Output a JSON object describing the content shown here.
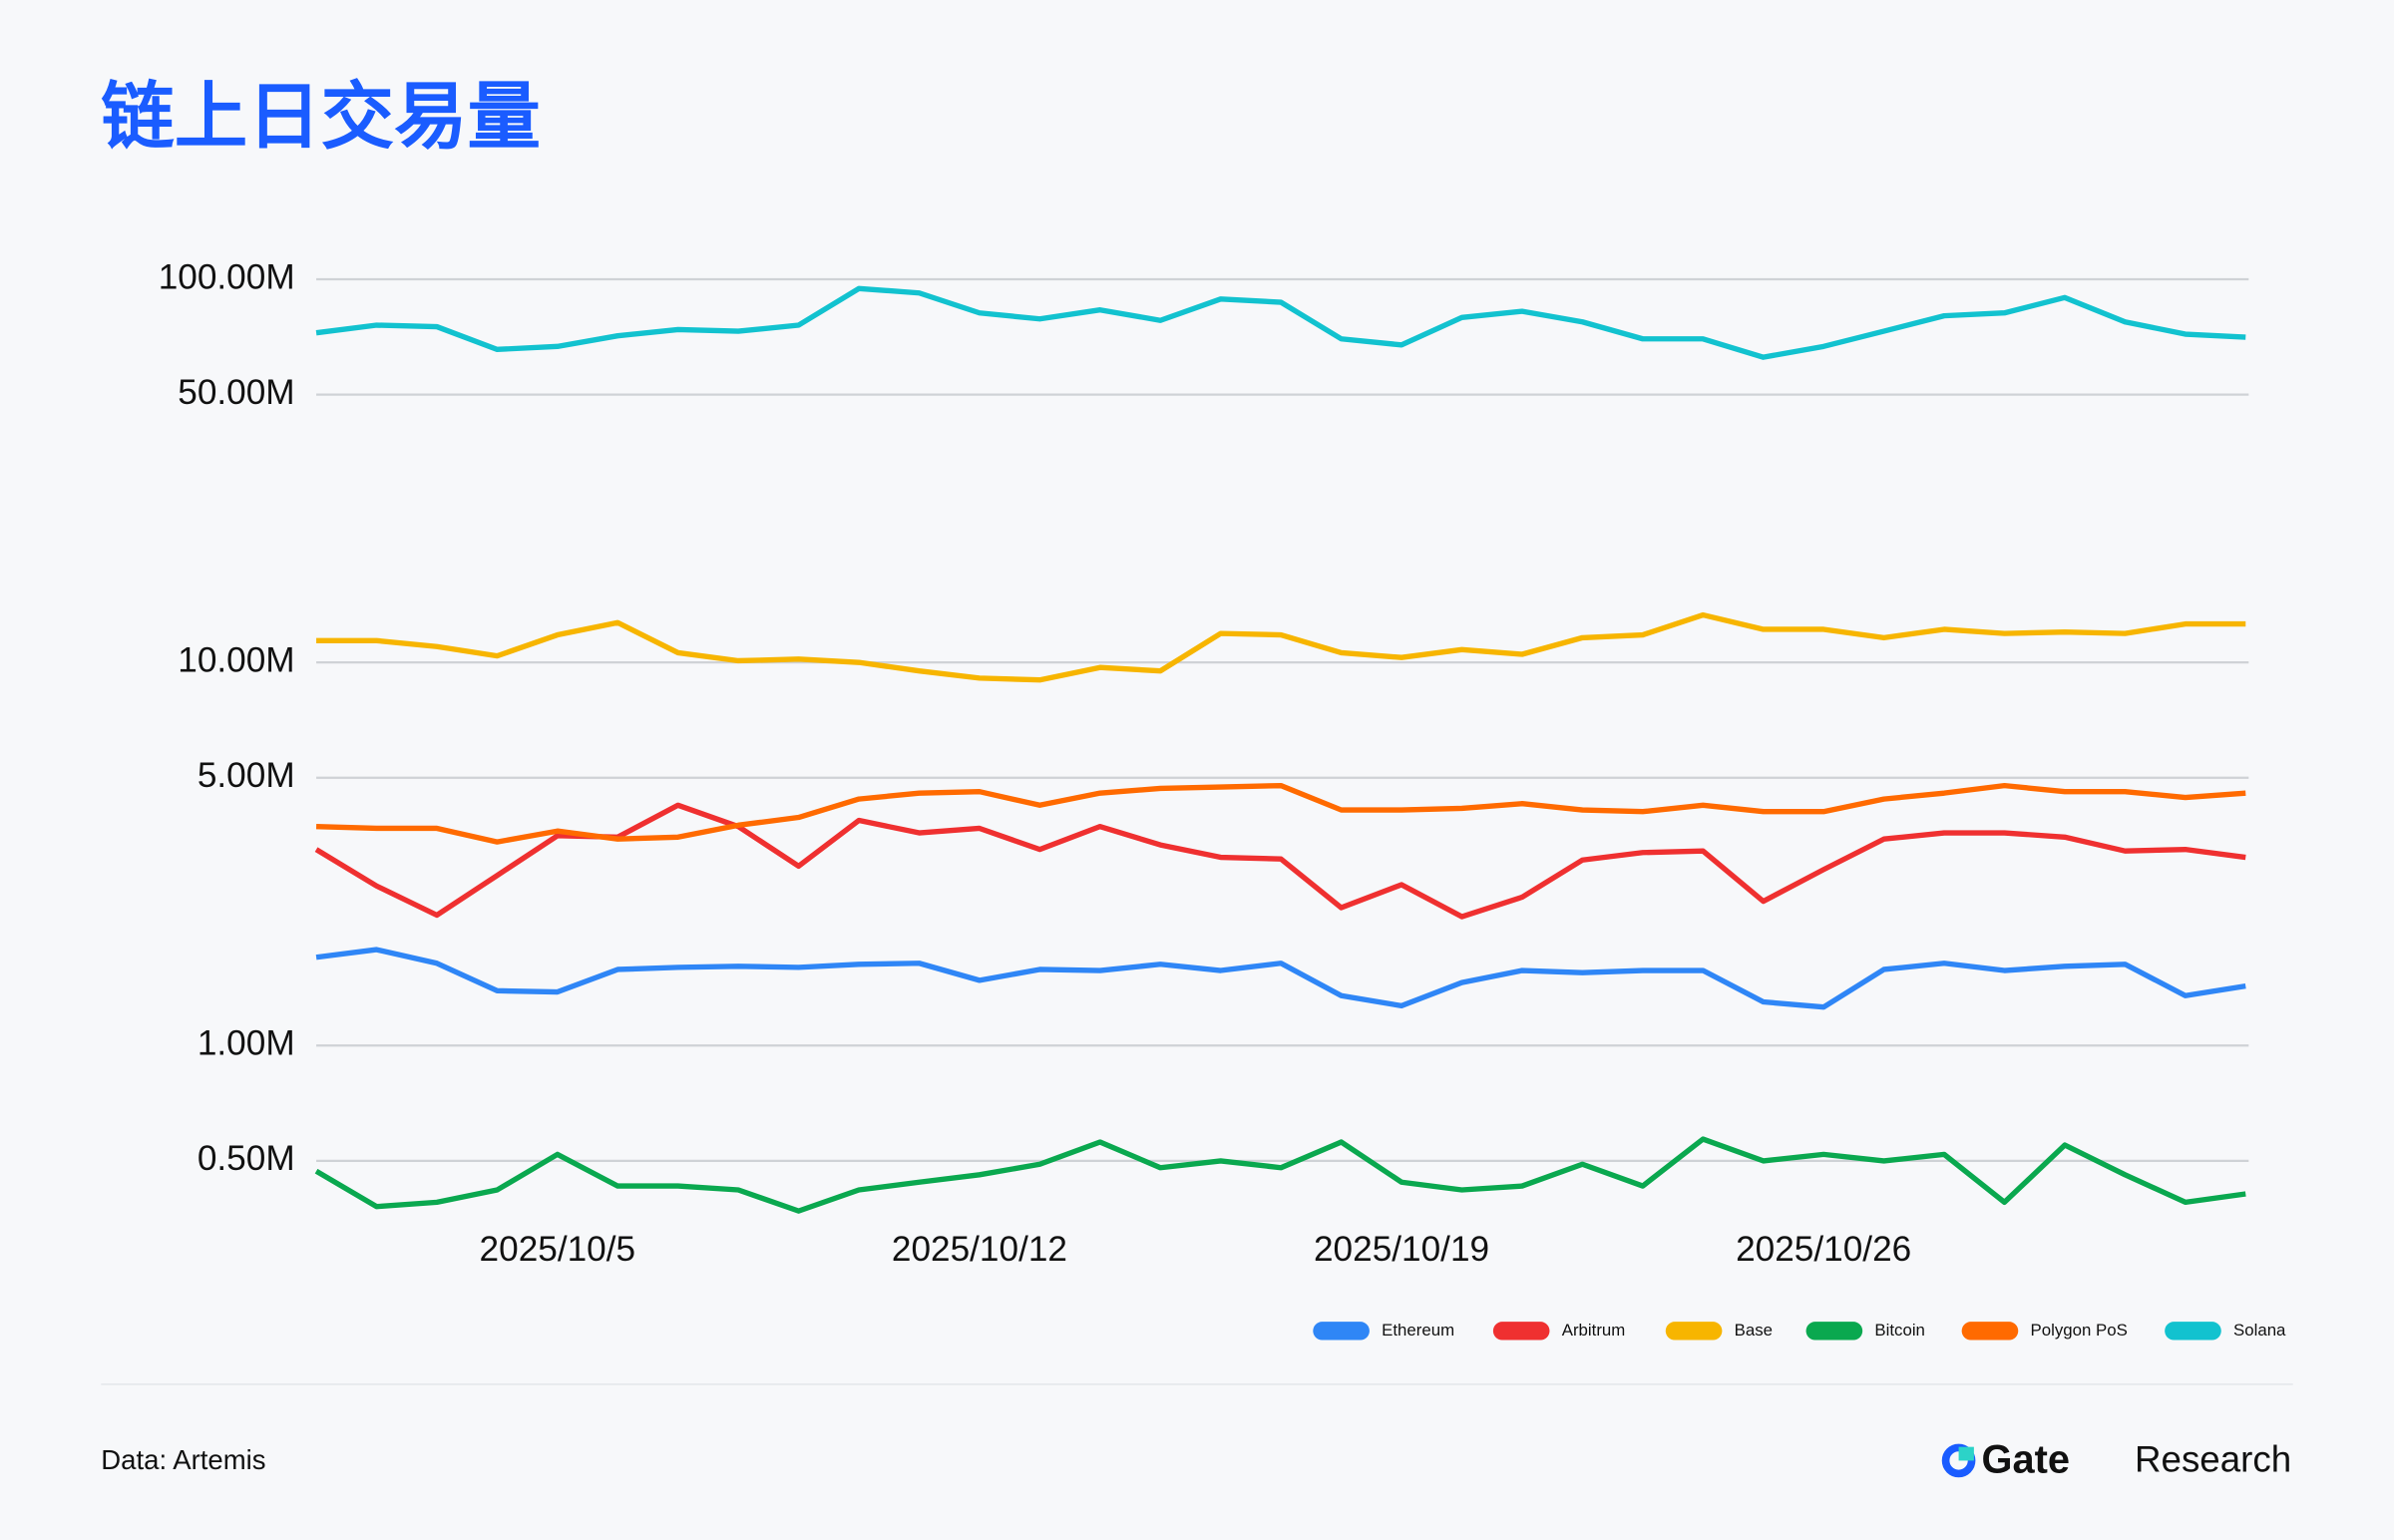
{
  "chart_data": {
    "type": "line",
    "title": "链上日交易量",
    "x": [
      "2025/10/1",
      "2025/10/2",
      "2025/10/3",
      "2025/10/4",
      "2025/10/5",
      "2025/10/6",
      "2025/10/7",
      "2025/10/8",
      "2025/10/9",
      "2025/10/10",
      "2025/10/11",
      "2025/10/12",
      "2025/10/13",
      "2025/10/14",
      "2025/10/15",
      "2025/10/16",
      "2025/10/17",
      "2025/10/18",
      "2025/10/19",
      "2025/10/20",
      "2025/10/21",
      "2025/10/22",
      "2025/10/23",
      "2025/10/24",
      "2025/10/25",
      "2025/10/26",
      "2025/10/27",
      "2025/10/28",
      "2025/10/29",
      "2025/10/30",
      "2025/10/31",
      "2025/11/1",
      "2025/11/2"
    ],
    "xticks": [
      "2025/10/5",
      "2025/10/12",
      "2025/10/19",
      "2025/10/26"
    ],
    "ylim": [
      0.35,
      110
    ],
    "log": true,
    "grid": true,
    "legend": "bottom-right",
    "yticks": [
      {
        "value": 0.5,
        "label": "0.50M"
      },
      {
        "value": 1,
        "label": "1.00M"
      },
      {
        "value": 5,
        "label": "5.00M"
      },
      {
        "value": 10,
        "label": "10.00M"
      },
      {
        "value": 50,
        "label": "50.00M"
      },
      {
        "value": 100,
        "label": "100.00M"
      }
    ],
    "series": [
      {
        "name": "Ethereum",
        "color": "#2f86f6",
        "values": [
          1.7,
          1.78,
          1.64,
          1.39,
          1.38,
          1.58,
          1.6,
          1.61,
          1.6,
          1.63,
          1.64,
          1.48,
          1.58,
          1.57,
          1.63,
          1.57,
          1.64,
          1.35,
          1.27,
          1.46,
          1.57,
          1.55,
          1.57,
          1.57,
          1.3,
          1.26,
          1.58,
          1.64,
          1.57,
          1.61,
          1.63,
          1.35,
          1.43
        ]
      },
      {
        "name": "Arbitrum",
        "color": "#ef3030",
        "values": [
          3.25,
          2.61,
          2.19,
          2.78,
          3.53,
          3.5,
          4.24,
          3.73,
          2.94,
          3.87,
          3.59,
          3.69,
          3.25,
          3.73,
          3.34,
          3.1,
          3.07,
          2.29,
          2.63,
          2.17,
          2.44,
          3.05,
          3.19,
          3.22,
          2.38,
          2.88,
          3.46,
          3.59,
          3.59,
          3.5,
          3.22,
          3.25,
          3.1
        ]
      },
      {
        "name": "Base",
        "color": "#f7b500",
        "values": [
          11.4,
          11.4,
          11.0,
          10.4,
          11.8,
          12.7,
          10.6,
          10.1,
          10.2,
          10.0,
          9.5,
          9.1,
          9.0,
          9.7,
          9.5,
          11.9,
          11.8,
          10.6,
          10.3,
          10.8,
          10.5,
          11.6,
          11.8,
          13.3,
          12.2,
          12.2,
          11.6,
          12.2,
          11.9,
          12.0,
          11.9,
          12.6,
          12.6
        ]
      },
      {
        "name": "Bitcoin",
        "color": "#0aa84f",
        "values": [
          0.47,
          0.38,
          0.39,
          0.42,
          0.52,
          0.43,
          0.43,
          0.42,
          0.37,
          0.42,
          0.44,
          0.46,
          0.49,
          0.56,
          0.48,
          0.5,
          0.48,
          0.56,
          0.44,
          0.42,
          0.43,
          0.49,
          0.43,
          0.57,
          0.5,
          0.52,
          0.5,
          0.52,
          0.39,
          0.55,
          0.46,
          0.39,
          0.41
        ]
      },
      {
        "name": "Polygon PoS",
        "color": "#ff6a00",
        "values": [
          3.73,
          3.69,
          3.69,
          3.4,
          3.63,
          3.46,
          3.5,
          3.76,
          3.94,
          4.4,
          4.56,
          4.6,
          4.24,
          4.56,
          4.69,
          4.73,
          4.77,
          4.12,
          4.12,
          4.16,
          4.28,
          4.12,
          4.08,
          4.24,
          4.08,
          4.08,
          4.4,
          4.56,
          4.77,
          4.6,
          4.6,
          4.44,
          4.56
        ]
      },
      {
        "name": "Solana",
        "color": "#12c2cf",
        "values": [
          72.5,
          75.9,
          75.2,
          65.6,
          66.8,
          71.2,
          73.9,
          73.2,
          75.9,
          94.6,
          92.1,
          81.7,
          78.8,
          83.2,
          78.1,
          88.8,
          87.1,
          69.9,
          67.4,
          79.5,
          82.5,
          77.4,
          69.9,
          69.9,
          62.6,
          66.8,
          73.2,
          80.3,
          81.7,
          89.6,
          77.4,
          71.9,
          70.6
        ]
      }
    ]
  },
  "footer": {
    "source": "Data: Artemis",
    "brand_name": "Gate",
    "brand_suffix": "Research"
  }
}
